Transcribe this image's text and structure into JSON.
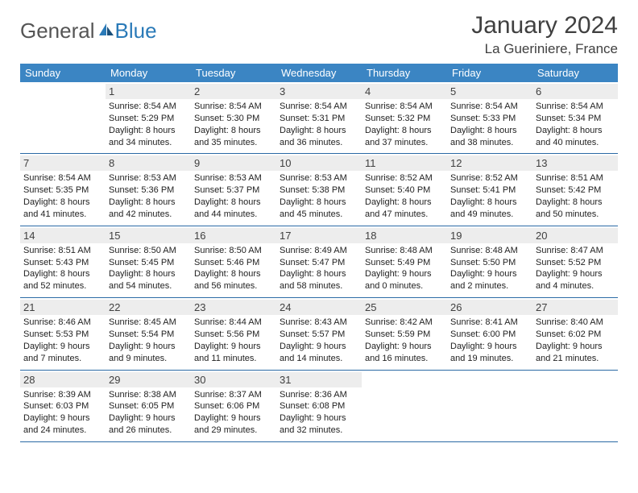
{
  "logo": {
    "part1": "General",
    "part2": "Blue"
  },
  "title": "January 2024",
  "location": "La Gueriniere, France",
  "header_bg": "#3b85c3",
  "divider_color": "#2a6aa5",
  "daynum_bg": "#ededed",
  "weekdays": [
    "Sunday",
    "Monday",
    "Tuesday",
    "Wednesday",
    "Thursday",
    "Friday",
    "Saturday"
  ],
  "weeks": [
    [
      null,
      {
        "n": "1",
        "sr": "8:54 AM",
        "ss": "5:29 PM",
        "dl": "8 hours and 34 minutes."
      },
      {
        "n": "2",
        "sr": "8:54 AM",
        "ss": "5:30 PM",
        "dl": "8 hours and 35 minutes."
      },
      {
        "n": "3",
        "sr": "8:54 AM",
        "ss": "5:31 PM",
        "dl": "8 hours and 36 minutes."
      },
      {
        "n": "4",
        "sr": "8:54 AM",
        "ss": "5:32 PM",
        "dl": "8 hours and 37 minutes."
      },
      {
        "n": "5",
        "sr": "8:54 AM",
        "ss": "5:33 PM",
        "dl": "8 hours and 38 minutes."
      },
      {
        "n": "6",
        "sr": "8:54 AM",
        "ss": "5:34 PM",
        "dl": "8 hours and 40 minutes."
      }
    ],
    [
      {
        "n": "7",
        "sr": "8:54 AM",
        "ss": "5:35 PM",
        "dl": "8 hours and 41 minutes."
      },
      {
        "n": "8",
        "sr": "8:53 AM",
        "ss": "5:36 PM",
        "dl": "8 hours and 42 minutes."
      },
      {
        "n": "9",
        "sr": "8:53 AM",
        "ss": "5:37 PM",
        "dl": "8 hours and 44 minutes."
      },
      {
        "n": "10",
        "sr": "8:53 AM",
        "ss": "5:38 PM",
        "dl": "8 hours and 45 minutes."
      },
      {
        "n": "11",
        "sr": "8:52 AM",
        "ss": "5:40 PM",
        "dl": "8 hours and 47 minutes."
      },
      {
        "n": "12",
        "sr": "8:52 AM",
        "ss": "5:41 PM",
        "dl": "8 hours and 49 minutes."
      },
      {
        "n": "13",
        "sr": "8:51 AM",
        "ss": "5:42 PM",
        "dl": "8 hours and 50 minutes."
      }
    ],
    [
      {
        "n": "14",
        "sr": "8:51 AM",
        "ss": "5:43 PM",
        "dl": "8 hours and 52 minutes."
      },
      {
        "n": "15",
        "sr": "8:50 AM",
        "ss": "5:45 PM",
        "dl": "8 hours and 54 minutes."
      },
      {
        "n": "16",
        "sr": "8:50 AM",
        "ss": "5:46 PM",
        "dl": "8 hours and 56 minutes."
      },
      {
        "n": "17",
        "sr": "8:49 AM",
        "ss": "5:47 PM",
        "dl": "8 hours and 58 minutes."
      },
      {
        "n": "18",
        "sr": "8:48 AM",
        "ss": "5:49 PM",
        "dl": "9 hours and 0 minutes."
      },
      {
        "n": "19",
        "sr": "8:48 AM",
        "ss": "5:50 PM",
        "dl": "9 hours and 2 minutes."
      },
      {
        "n": "20",
        "sr": "8:47 AM",
        "ss": "5:52 PM",
        "dl": "9 hours and 4 minutes."
      }
    ],
    [
      {
        "n": "21",
        "sr": "8:46 AM",
        "ss": "5:53 PM",
        "dl": "9 hours and 7 minutes."
      },
      {
        "n": "22",
        "sr": "8:45 AM",
        "ss": "5:54 PM",
        "dl": "9 hours and 9 minutes."
      },
      {
        "n": "23",
        "sr": "8:44 AM",
        "ss": "5:56 PM",
        "dl": "9 hours and 11 minutes."
      },
      {
        "n": "24",
        "sr": "8:43 AM",
        "ss": "5:57 PM",
        "dl": "9 hours and 14 minutes."
      },
      {
        "n": "25",
        "sr": "8:42 AM",
        "ss": "5:59 PM",
        "dl": "9 hours and 16 minutes."
      },
      {
        "n": "26",
        "sr": "8:41 AM",
        "ss": "6:00 PM",
        "dl": "9 hours and 19 minutes."
      },
      {
        "n": "27",
        "sr": "8:40 AM",
        "ss": "6:02 PM",
        "dl": "9 hours and 21 minutes."
      }
    ],
    [
      {
        "n": "28",
        "sr": "8:39 AM",
        "ss": "6:03 PM",
        "dl": "9 hours and 24 minutes."
      },
      {
        "n": "29",
        "sr": "8:38 AM",
        "ss": "6:05 PM",
        "dl": "9 hours and 26 minutes."
      },
      {
        "n": "30",
        "sr": "8:37 AM",
        "ss": "6:06 PM",
        "dl": "9 hours and 29 minutes."
      },
      {
        "n": "31",
        "sr": "8:36 AM",
        "ss": "6:08 PM",
        "dl": "9 hours and 32 minutes."
      },
      null,
      null,
      null
    ]
  ],
  "labels": {
    "sunrise": "Sunrise: ",
    "sunset": "Sunset: ",
    "daylight": "Daylight: "
  }
}
